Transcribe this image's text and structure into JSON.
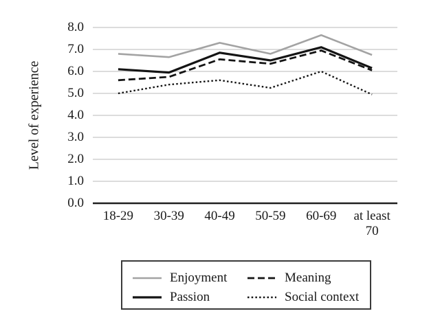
{
  "figure": {
    "background": "#ffffff"
  },
  "chart_data": {
    "type": "line",
    "title": "",
    "xlabel": "",
    "ylabel": "Level of experience",
    "ylim": [
      0.0,
      8.0
    ],
    "ytick_step": 1.0,
    "ytick_labels": [
      "8.0",
      "7.0",
      "6.0",
      "5.0",
      "4.0",
      "3.0",
      "2.0",
      "1.0",
      "0.0"
    ],
    "categories": [
      "18-29",
      "30-39",
      "40-49",
      "50-59",
      "60-69",
      "at least 70"
    ],
    "series": [
      {
        "name": "Enjoyment",
        "values": [
          6.8,
          6.65,
          7.3,
          6.8,
          7.65,
          6.75
        ],
        "color": "#a3a3a3",
        "dash": "solid",
        "width": 2.6
      },
      {
        "name": "Passion",
        "values": [
          6.1,
          5.95,
          6.85,
          6.5,
          7.1,
          6.15
        ],
        "color": "#141414",
        "dash": "solid",
        "width": 3.2
      },
      {
        "name": "Meaning",
        "values": [
          5.6,
          5.75,
          6.55,
          6.35,
          6.95,
          6.05
        ],
        "color": "#141414",
        "dash": "dashed",
        "width": 2.8
      },
      {
        "name": "Social context",
        "values": [
          5.0,
          5.4,
          5.6,
          5.25,
          6.0,
          4.95
        ],
        "color": "#141414",
        "dash": "dotted",
        "width": 2.4
      }
    ],
    "grid": "horizontal",
    "legend": {
      "position": "bottom",
      "border": true,
      "columns": 2,
      "items": [
        "Enjoyment",
        "Meaning",
        "Passion",
        "Social context"
      ]
    },
    "colors": {
      "gridline": "#c8c8c8",
      "axis_line": "#1f1f1f",
      "text": "#1a1a1a"
    }
  }
}
